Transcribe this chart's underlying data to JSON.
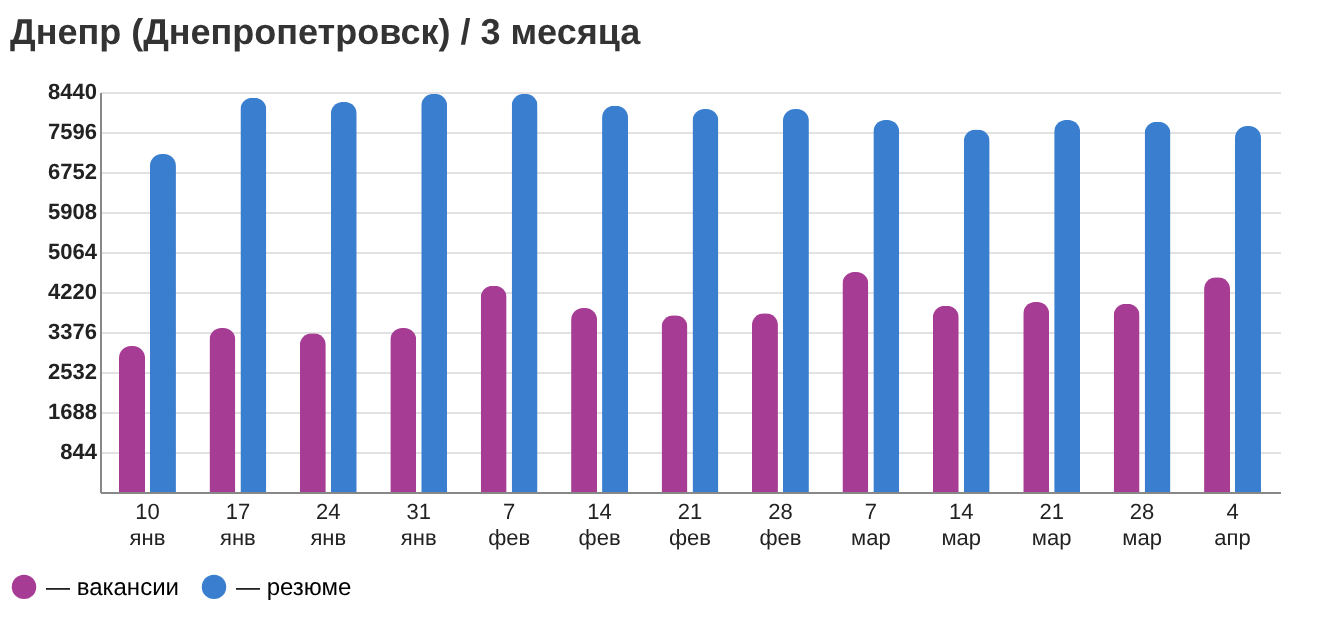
{
  "chart_data": {
    "type": "bar",
    "title": "Днепр (Днепропетровск) / 3 месяца",
    "categories": [
      "10 янв",
      "17 янв",
      "24 янв",
      "31 янв",
      "7 фев",
      "14 фев",
      "21 фев",
      "28 фев",
      "7 мар",
      "14 мар",
      "21 мар",
      "28 мар",
      "4 апр"
    ],
    "series": [
      {
        "name": "— вакансии",
        "color": "#a63c93",
        "values": [
          3080,
          3460,
          3350,
          3460,
          4350,
          3880,
          3730,
          3770,
          4640,
          3930,
          4010,
          3970,
          4530
        ]
      },
      {
        "name": "— резюме",
        "color": "#3a7fcf",
        "values": [
          7130,
          8320,
          8230,
          8400,
          8400,
          8150,
          8080,
          8080,
          7850,
          7650,
          7850,
          7810,
          7720
        ]
      }
    ],
    "ylim": [
      0,
      8440
    ],
    "yticks": [
      844,
      1688,
      2532,
      3376,
      4220,
      5064,
      5908,
      6752,
      7596,
      8440
    ],
    "grid": "y",
    "legend": "bottom left"
  }
}
